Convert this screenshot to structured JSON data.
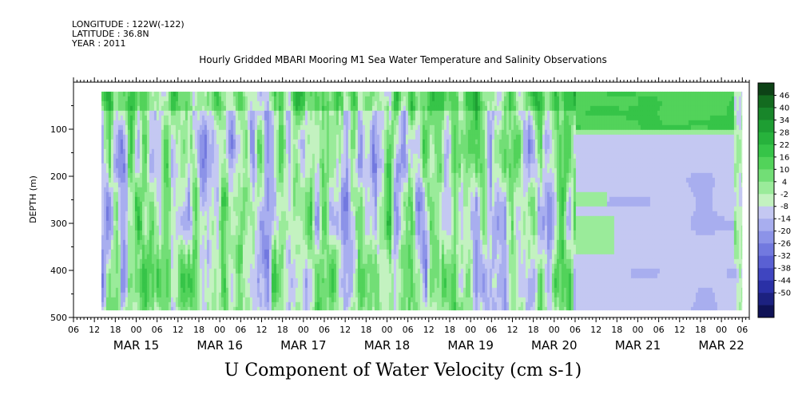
{
  "header": {
    "longitude": "LONGITUDE : 122W(-122)",
    "latitude": "LATITUDE : 36.8N",
    "year": "YEAR : 2011"
  },
  "title": "Hourly Gridded MBARI Mooring M1 Sea Water Temperature and Salinity Observations",
  "subtitle": "U Component of Water Velocity (cm s-1)",
  "chart_data": {
    "type": "heatmap",
    "variable": "U Component of Water Velocity",
    "units": "cm s-1",
    "ylabel": "DEPTH (m)",
    "ylim": [
      500,
      0
    ],
    "y_ticks": [
      100,
      200,
      300,
      400,
      500
    ],
    "y_tick_labels": [
      "100",
      "200",
      "300",
      "400",
      "500"
    ],
    "xlim": [
      "2011-03-14T06:00",
      "2011-03-22T08:00"
    ],
    "x_tick_hours": [
      "06",
      "12",
      "18",
      "00",
      "06",
      "12",
      "18",
      "00",
      "06",
      "12",
      "18",
      "00",
      "06",
      "12",
      "18",
      "00",
      "06",
      "12",
      "18",
      "00",
      "06",
      "12",
      "18",
      "00",
      "06",
      "12",
      "18",
      "00",
      "06",
      "12",
      "18",
      "00",
      "06"
    ],
    "x_day_labels": [
      {
        "label": "MAR 15",
        "time": "2011-03-15T00:00"
      },
      {
        "label": "MAR 16",
        "time": "2011-03-16T00:00"
      },
      {
        "label": "MAR 17",
        "time": "2011-03-17T00:00"
      },
      {
        "label": "MAR 18",
        "time": "2011-03-18T00:00"
      },
      {
        "label": "MAR 19",
        "time": "2011-03-19T00:00"
      },
      {
        "label": "MAR 20",
        "time": "2011-03-20T00:00"
      },
      {
        "label": "MAR 21",
        "time": "2011-03-21T00:00"
      },
      {
        "label": "MAR 22",
        "time": "2011-03-22T00:00"
      }
    ],
    "data_time_range": [
      "2011-03-14T14:00",
      "2011-03-22T06:00"
    ],
    "data_depth_range": [
      20,
      485
    ],
    "colorbar": {
      "labels": [
        "46",
        "40",
        "34",
        "28",
        "22",
        "16",
        "10",
        "4",
        "-2",
        "-8",
        "-14",
        "-20",
        "-26",
        "-32",
        "-38",
        "-44",
        "-50"
      ],
      "range": [
        -50,
        50
      ],
      "colors": [
        "#0d4216",
        "#136b1f",
        "#18862a",
        "#1e9e33",
        "#27b23c",
        "#36c448",
        "#52d35a",
        "#72de76",
        "#9aeb9a",
        "#c3f2c0",
        "#c4c8f2",
        "#a8aeef",
        "#8c93e8",
        "#7279df",
        "#5a60d3",
        "#3f45c0",
        "#2a30a6",
        "#1c2180",
        "#0f1256"
      ]
    },
    "regimes": [
      {
        "period": "2011-03-14T14:00/2011-03-20T06:00",
        "description": "alternating positive (green) and negative (blue) bands, near-vertical stripes through depth"
      },
      {
        "period": "2011-03-20T06:00/2011-03-22T00:00",
        "depth": "20-110",
        "value_range": [
          10,
          28
        ]
      },
      {
        "period": "2011-03-20T06:00/2011-03-22T00:00",
        "depth": "110-485",
        "value_range": [
          -14,
          -2
        ]
      }
    ]
  }
}
